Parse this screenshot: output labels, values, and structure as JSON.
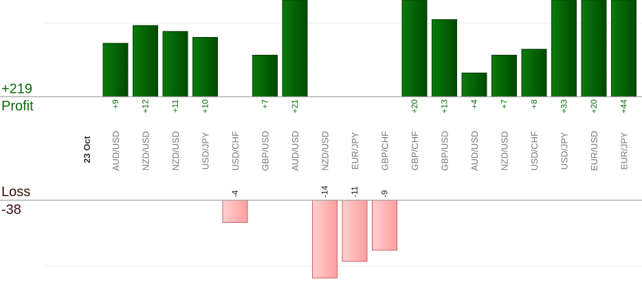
{
  "totals": {
    "profit_value": "+219",
    "profit_label": "Profit",
    "loss_label": "Loss",
    "loss_value": "-38"
  },
  "chart_data": {
    "type": "bar",
    "date": "23 Oct",
    "categories": [
      "AUD/USD",
      "NZD/USD",
      "NZD/USD",
      "USD/JPY",
      "USD/CHF",
      "GBP/USD",
      "AUD/USD",
      "NZD/USD",
      "EUR/JPY",
      "GBP/CHF",
      "GBP/CHF",
      "GBP/USD",
      "AUD/USD",
      "NZD/USD",
      "USD/CHF",
      "USD/JPY",
      "EUR/USD",
      "EUR/JPY"
    ],
    "values": [
      9,
      12,
      11,
      10,
      -4,
      7,
      21,
      -14,
      -11,
      -9,
      20,
      13,
      4,
      7,
      8,
      33,
      20,
      44
    ],
    "value_labels": [
      "+9",
      "+12",
      "+11",
      "+10",
      "-4",
      "+7",
      "+21",
      "-14",
      "-11",
      "-9",
      "+20",
      "+13",
      "+4",
      "+7",
      "+8",
      "+33",
      "+20",
      "+44"
    ],
    "colors": {
      "profit": "#006400",
      "profit_light": "#0a7a0a",
      "loss": "#ffb3b3",
      "loss_light": "#ffd6d6"
    },
    "grid": true
  }
}
